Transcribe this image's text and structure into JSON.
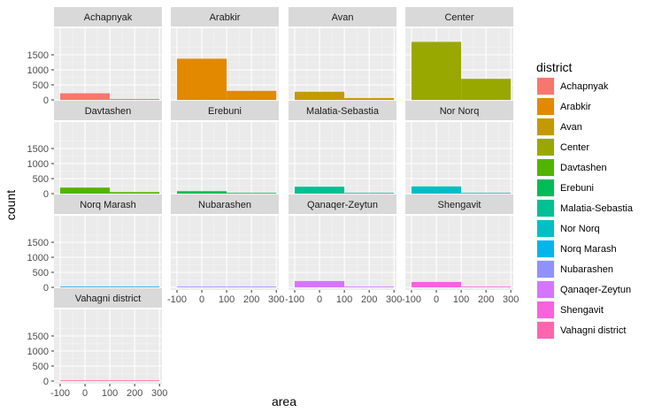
{
  "chart_data": {
    "type": "bar",
    "chart_kind": "faceted histogram",
    "xlabel": "area",
    "ylabel": "count",
    "x_ticks": [
      "-100",
      "0",
      "100",
      "200",
      "300"
    ],
    "y_ticks": [
      "0",
      "500",
      "1000",
      "1500"
    ],
    "xlim": [
      -125,
      310
    ],
    "ylim": [
      0,
      2000
    ],
    "bins": [
      [
        -100,
        100
      ],
      [
        100,
        300
      ]
    ],
    "legend": {
      "title": "district",
      "position": "right"
    },
    "grid": true,
    "facets": [
      {
        "name": "Achapnyak",
        "color": "#F8766D",
        "counts": [
          220,
          30
        ]
      },
      {
        "name": "Arabkir",
        "color": "#E38900",
        "counts": [
          1370,
          300
        ]
      },
      {
        "name": "Avan",
        "color": "#C49A00",
        "counts": [
          270,
          60
        ]
      },
      {
        "name": "Center",
        "color": "#99A800",
        "counts": [
          1930,
          700
        ]
      },
      {
        "name": "Davtashen",
        "color": "#53B400",
        "counts": [
          200,
          50
        ]
      },
      {
        "name": "Erebuni",
        "color": "#00BC56",
        "counts": [
          80,
          0
        ]
      },
      {
        "name": "Malatia-Sebastia",
        "color": "#00C094",
        "counts": [
          230,
          10
        ]
      },
      {
        "name": "Nor Norq",
        "color": "#00BFC4",
        "counts": [
          240,
          10
        ]
      },
      {
        "name": "Norq Marash",
        "color": "#00B6EB",
        "counts": [
          0,
          0
        ]
      },
      {
        "name": "Nubarashen",
        "color": "#8F91FF",
        "counts": [
          0,
          0
        ]
      },
      {
        "name": "Qanaqer-Zeytun",
        "color": "#D575FE",
        "counts": [
          210,
          10
        ]
      },
      {
        "name": "Shengavit",
        "color": "#F962DD",
        "counts": [
          180,
          10
        ]
      },
      {
        "name": "Vahagni district",
        "color": "#FF65AE",
        "counts": [
          0,
          0
        ]
      }
    ]
  }
}
